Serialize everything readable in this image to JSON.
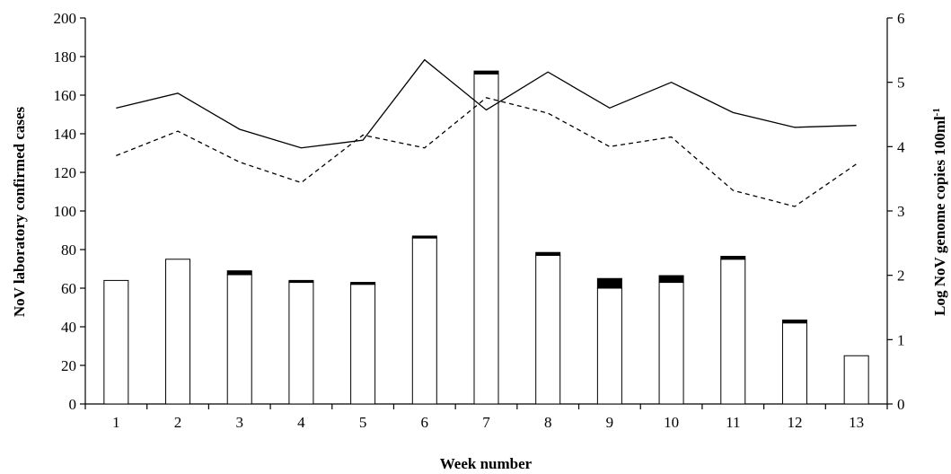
{
  "chart_data": {
    "type": "bar",
    "categories": [
      "1",
      "2",
      "3",
      "4",
      "5",
      "6",
      "7",
      "8",
      "9",
      "10",
      "11",
      "12",
      "13"
    ],
    "xlabel": "Week number",
    "ylabel": "NoV laboratory confirmed cases",
    "y2label_main": "Log NoV genome copies 100ml",
    "y2label_sup": "-1",
    "ylim": [
      0,
      200
    ],
    "y2lim": [
      0,
      6
    ],
    "yticks": [
      "0",
      "20",
      "40",
      "60",
      "80",
      "100",
      "120",
      "140",
      "160",
      "180",
      "200"
    ],
    "y2ticks": [
      "0",
      "1",
      "2",
      "3",
      "4",
      "5",
      "6"
    ],
    "grid": false,
    "legend": "none",
    "bars_open": [
      64,
      75,
      67,
      63,
      62,
      86,
      171,
      77,
      60,
      63,
      75,
      42,
      25
    ],
    "bars_solid": [
      0,
      0,
      2,
      1,
      1,
      1,
      1.5,
      1.5,
      5,
      3.5,
      1.5,
      1.5,
      0
    ],
    "line_solid": [
      4.6,
      4.83,
      4.27,
      3.98,
      4.1,
      5.35,
      4.57,
      5.16,
      4.6,
      5.0,
      4.53,
      4.3,
      4.33
    ],
    "line_dashed": [
      3.86,
      4.24,
      3.76,
      3.44,
      4.18,
      3.98,
      4.76,
      4.52,
      4.0,
      4.15,
      3.32,
      3.07,
      3.73
    ]
  }
}
